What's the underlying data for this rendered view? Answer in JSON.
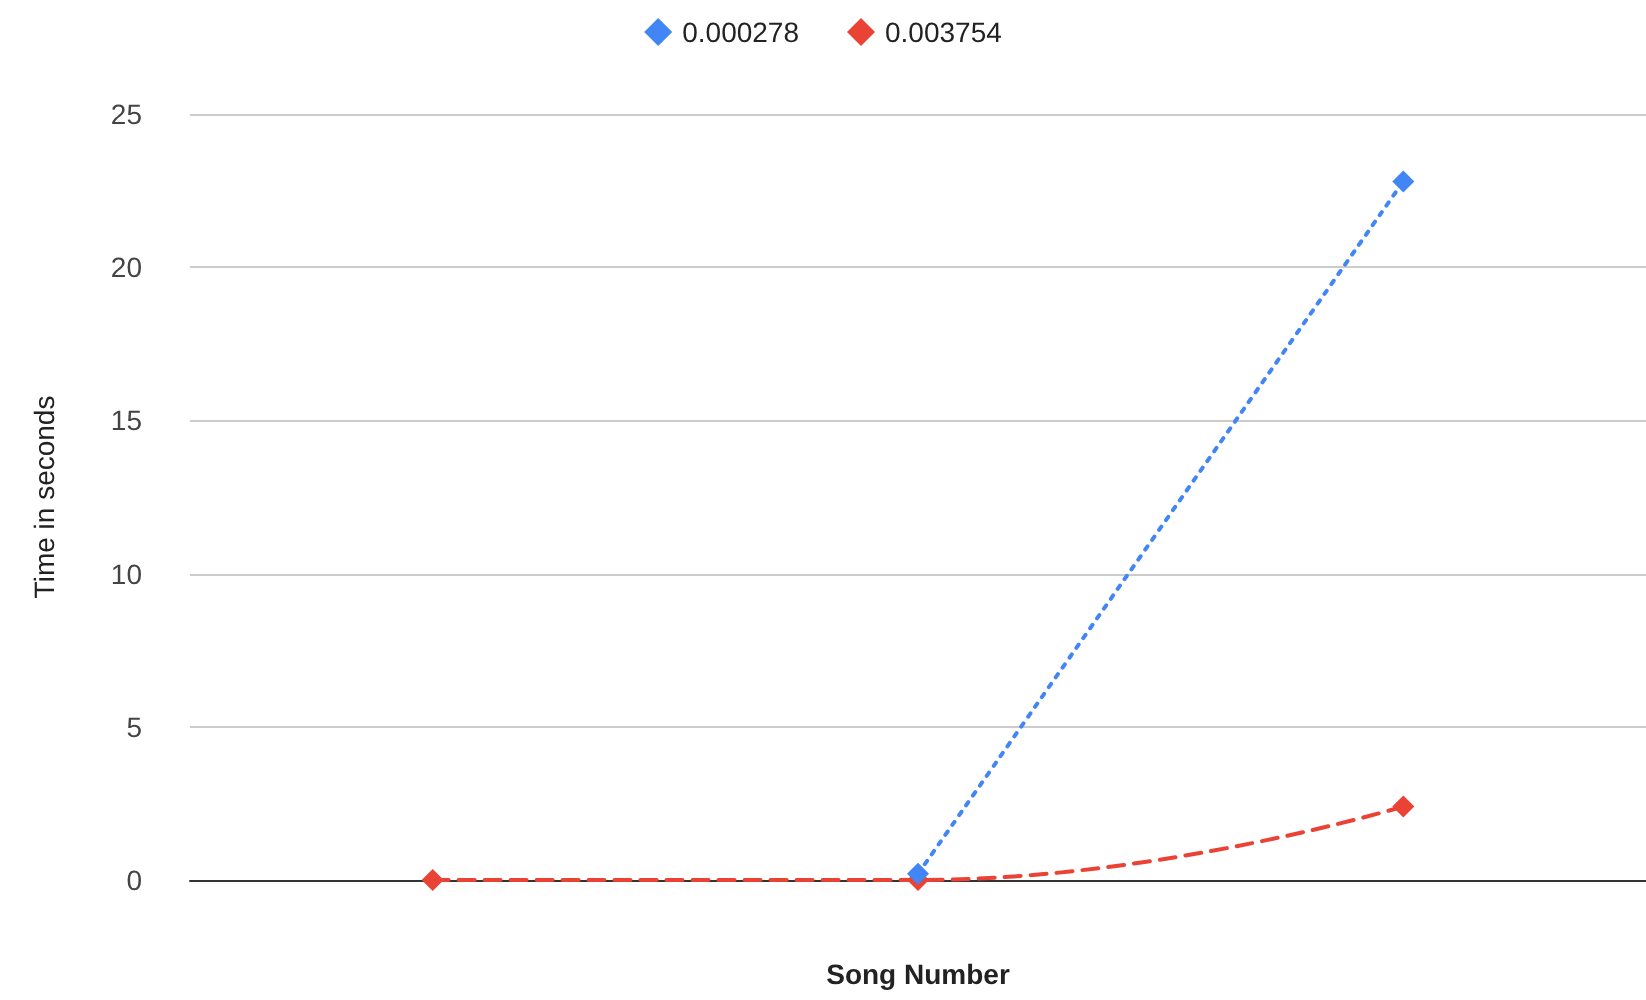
{
  "chart_data": {
    "type": "line",
    "xlabel": "Song Number",
    "ylabel": "Time in seconds",
    "categories": [
      null,
      null,
      null
    ],
    "series": [
      {
        "name": "0.000278",
        "color": "#4285f4",
        "values": [
          null,
          0.2,
          22.8
        ],
        "line_style": "dotted"
      },
      {
        "name": "0.003754",
        "color": "#ea4335",
        "values": [
          0,
          0,
          2.4
        ],
        "line_style": "dashed"
      }
    ],
    "ylim": [
      0,
      25
    ],
    "yticks": [
      0,
      5,
      10,
      15,
      20,
      25
    ],
    "grid": "y",
    "legend": "top",
    "marker": "diamond",
    "tick_labels": "y"
  }
}
